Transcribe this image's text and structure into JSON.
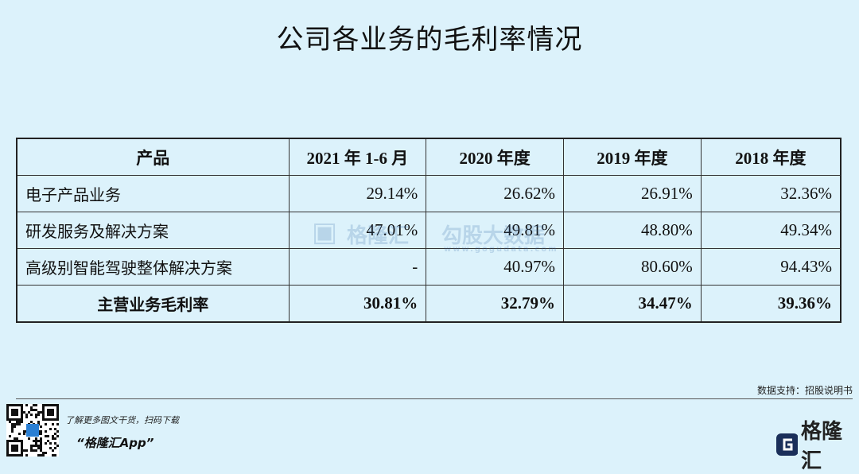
{
  "header": {
    "title": "公司各业务的毛利率情况"
  },
  "table": {
    "columns": [
      "产品",
      "2021 年 1-6 月",
      "2020 年度",
      "2019 年度",
      "2018 年度"
    ],
    "rows": [
      [
        "电子产品业务",
        "29.14%",
        "26.62%",
        "26.91%",
        "32.36%"
      ],
      [
        "研发服务及解决方案",
        "47.01%",
        "49.81%",
        "48.80%",
        "49.34%"
      ],
      [
        "高级别智能驾驶整体解决方案",
        "-",
        "40.97%",
        "80.60%",
        "94.43%"
      ],
      [
        "主营业务毛利率",
        "30.81%",
        "32.79%",
        "34.47%",
        "39.36%"
      ]
    ]
  },
  "watermark": {
    "brand": "格隆汇",
    "partner": "勾股大数据",
    "url": "www.gogudata.com"
  },
  "footer": {
    "source": "数据支持：招股说明书",
    "promo": "了解更多图文干货，扫码下载",
    "app": "“格隆汇App”",
    "logo": "格隆汇"
  }
}
